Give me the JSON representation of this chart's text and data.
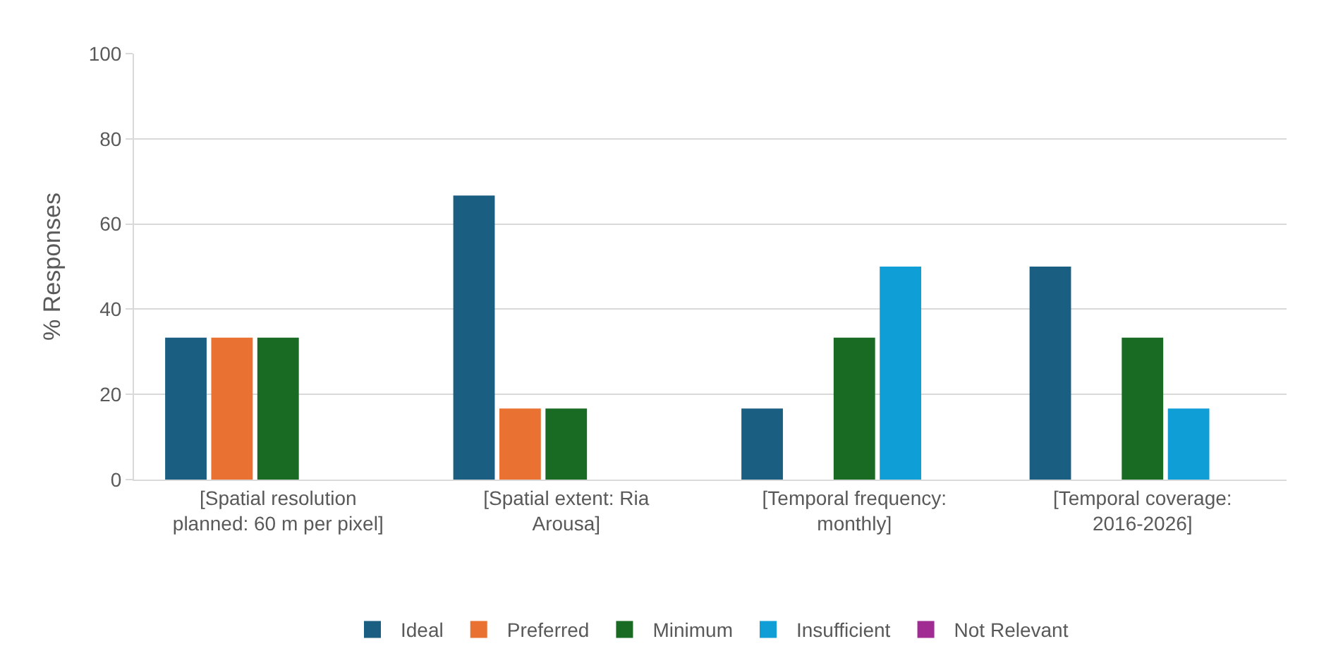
{
  "chart_data": {
    "type": "bar",
    "ylabel": "% Responses",
    "categories": [
      "[Spatial resolution planned: 60 m per pixel]",
      "[Spatial extent: Ria Arousa]",
      "[Temporal frequency: monthly]",
      "[Temporal coverage: 2016-2026]"
    ],
    "series": [
      {
        "name": "Ideal",
        "color": "#1a5e82",
        "values": [
          33.3,
          66.7,
          16.7,
          50
        ]
      },
      {
        "name": "Preferred",
        "color": "#e97132",
        "values": [
          33.3,
          16.7,
          0,
          0
        ]
      },
      {
        "name": "Minimum",
        "color": "#196b24",
        "values": [
          33.3,
          16.7,
          33.3,
          33.3
        ]
      },
      {
        "name": "Insufficient",
        "color": "#0f9ed5",
        "values": [
          0,
          0,
          50,
          16.7
        ]
      },
      {
        "name": "Not Relevant",
        "color": "#a02b93",
        "values": [
          0,
          0,
          0,
          0
        ]
      }
    ],
    "ylim": [
      0,
      100
    ],
    "yticks": [
      0,
      20,
      40,
      60,
      80,
      100
    ],
    "grid": "y",
    "legend": "bottom"
  }
}
